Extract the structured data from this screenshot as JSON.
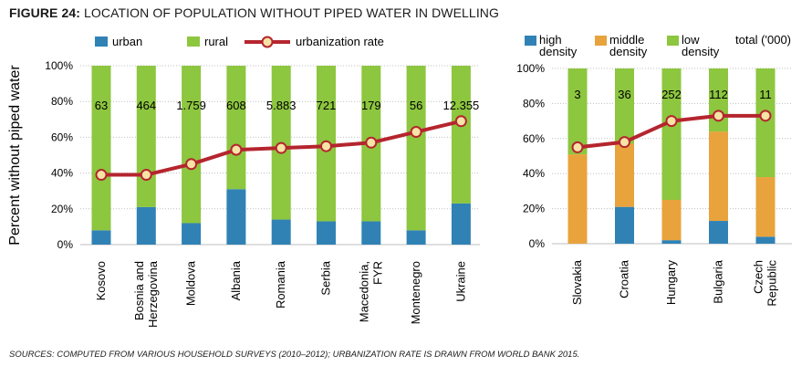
{
  "figure": {
    "label": "FIGURE 24:",
    "title": "LOCATION OF POPULATION WITHOUT PIPED WATER IN DWELLING",
    "source": "SOURCES: COMPUTED FROM VARIOUS HOUSEHOLD SURVEYS (2010–2012); URBANIZATION RATE IS DRAWN FROM WORLD BANK 2015."
  },
  "colors": {
    "urban": "#3082b5",
    "rural": "#8dc63f",
    "middle_density": "#e8a33d",
    "urbanization_rate": "#b5252e",
    "marker_fill": "#f6e3a6"
  },
  "chart_data": [
    {
      "type": "bar",
      "stacked": true,
      "ylabel": "Percent without piped water",
      "ylim": [
        0,
        100
      ],
      "yticks": [
        "0%",
        "20%",
        "40%",
        "60%",
        "80%",
        "100%"
      ],
      "legend": [
        "urban",
        "rural",
        "urbanization rate"
      ],
      "legend_position": "top",
      "categories": [
        "Kosovo",
        "Bosnia and Herzegovina",
        "Moldova",
        "Albania",
        "Romania",
        "Serbia",
        "Macedonia, FYR",
        "Montenegro",
        "Ukraine"
      ],
      "category_lines": [
        [
          "Kosovo"
        ],
        [
          "Bosnia and",
          "Herzegovina"
        ],
        [
          "Moldova"
        ],
        [
          "Albania"
        ],
        [
          "Romania"
        ],
        [
          "Serbia"
        ],
        [
          "Macedonia,",
          "FYR"
        ],
        [
          "Montenegro"
        ],
        [
          "Ukraine"
        ]
      ],
      "series": [
        {
          "name": "urban",
          "values": [
            8,
            21,
            12,
            31,
            14,
            13,
            13,
            8,
            23
          ]
        },
        {
          "name": "rural",
          "values": [
            92,
            79,
            88,
            69,
            86,
            87,
            87,
            92,
            77
          ]
        }
      ],
      "line": {
        "name": "urbanization rate",
        "values": [
          39,
          39,
          45,
          53,
          54,
          55,
          57,
          63,
          69
        ]
      },
      "data_labels": [
        "63",
        "464",
        "1.759",
        "608",
        "5.883",
        "721",
        "179",
        "56",
        "12.355"
      ]
    },
    {
      "type": "bar",
      "stacked": true,
      "ylim": [
        0,
        100
      ],
      "yticks": [
        "0%",
        "20%",
        "40%",
        "60%",
        "80%",
        "100%"
      ],
      "legend": [
        [
          "high",
          "density"
        ],
        [
          "middle",
          "density"
        ],
        [
          "low",
          "density"
        ]
      ],
      "legend_note": "total ('000)",
      "legend_position": "top",
      "categories": [
        "Slovakia",
        "Croatia",
        "Hungary",
        "Bulgaria",
        "Czech Republic"
      ],
      "category_lines": [
        [
          "Slovakia"
        ],
        [
          "Croatia"
        ],
        [
          "Hungary"
        ],
        [
          "Bulgaria"
        ],
        [
          "Czech",
          "Republic"
        ]
      ],
      "series": [
        {
          "name": "high density",
          "values": [
            0,
            21,
            2,
            13,
            4
          ]
        },
        {
          "name": "middle density",
          "values": [
            51,
            36,
            23,
            51,
            34
          ]
        },
        {
          "name": "low density",
          "values": [
            49,
            43,
            75,
            36,
            62
          ]
        }
      ],
      "line": {
        "values": [
          55,
          58,
          70,
          73,
          73
        ]
      },
      "data_labels": [
        "3",
        "36",
        "252",
        "112",
        "11"
      ]
    }
  ]
}
